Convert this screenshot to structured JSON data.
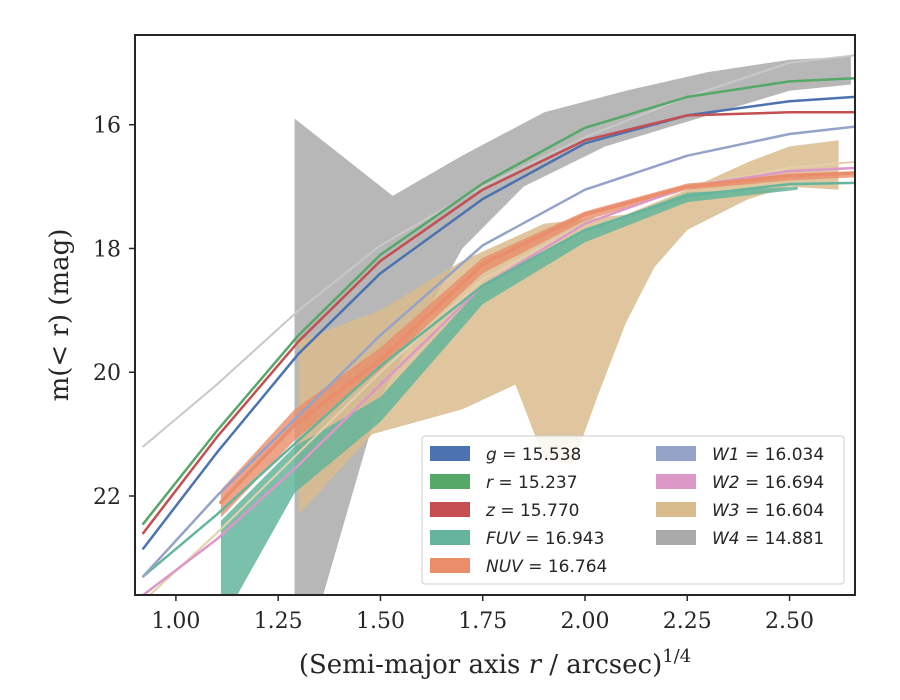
{
  "chart_data": {
    "type": "line",
    "title": "",
    "xlabel_main": "(Semi-major axis ",
    "xlabel_var": "r",
    "xlabel_tail": " / arcsec)",
    "xlabel_sup": "1/4",
    "ylabel": "m(< r) (mag)",
    "xlim": [
      0.9,
      2.66
    ],
    "ylim": [
      23.6,
      14.55
    ],
    "xticks": [
      "1.00",
      "1.25",
      "1.50",
      "1.75",
      "2.00",
      "2.25",
      "2.50"
    ],
    "xtick_values": [
      1.0,
      1.25,
      1.5,
      1.75,
      2.0,
      2.25,
      2.5
    ],
    "yticks": [
      "16",
      "18",
      "20",
      "22"
    ],
    "ytick_values": [
      16,
      18,
      20,
      22
    ],
    "grid": false,
    "legend_position": "lower-right",
    "legend": [
      {
        "label": "g = 15.538",
        "var": "g",
        "value": "15.538",
        "color": "#4c72b0"
      },
      {
        "label": "r = 15.237",
        "var": "r",
        "value": "15.237",
        "color": "#55a868"
      },
      {
        "label": "z = 15.770",
        "var": "z",
        "value": "15.770",
        "color": "#c44e52"
      },
      {
        "label": "FUV = 16.943",
        "var": "FUV",
        "value": "16.943",
        "color": "#64b59b"
      },
      {
        "label": "NUV = 16.764",
        "var": "NUV",
        "value": "16.764",
        "color": "#e98d6b"
      },
      {
        "label": "W1 = 16.034",
        "var": "W1",
        "value": "16.034",
        "color": "#95a3c8"
      },
      {
        "label": "W2 = 16.694",
        "var": "W2",
        "value": "16.694",
        "color": "#dc98c6"
      },
      {
        "label": "W3 = 16.604",
        "var": "W3",
        "value": "16.604",
        "color": "#d9bc8e"
      },
      {
        "label": "W4 = 14.881",
        "var": "W4",
        "value": "14.881",
        "color": "#aaaaaa"
      }
    ],
    "bands": [
      {
        "name": "W4",
        "color": "#aaaaaa",
        "opacity": 0.85,
        "upper": [
          [
            1.29,
            15.9
          ],
          [
            1.53,
            17.15
          ],
          [
            1.7,
            16.5
          ],
          [
            1.9,
            15.8
          ],
          [
            2.1,
            15.45
          ],
          [
            2.3,
            15.15
          ],
          [
            2.5,
            14.95
          ],
          [
            2.65,
            14.9
          ]
        ],
        "lower": [
          [
            1.29,
            23.6
          ],
          [
            1.36,
            23.6
          ],
          [
            1.5,
            20.4
          ],
          [
            1.7,
            18.0
          ],
          [
            1.85,
            17.0
          ],
          [
            2.05,
            16.35
          ],
          [
            2.3,
            15.85
          ],
          [
            2.5,
            15.45
          ],
          [
            2.65,
            15.35
          ]
        ]
      },
      {
        "name": "W3",
        "color": "#d9bc8e",
        "opacity": 0.85,
        "upper": [
          [
            1.3,
            19.5
          ],
          [
            1.5,
            19.0
          ],
          [
            1.7,
            18.2
          ],
          [
            1.9,
            17.6
          ],
          [
            2.1,
            17.45
          ],
          [
            2.25,
            17.05
          ],
          [
            2.4,
            16.6
          ],
          [
            2.5,
            16.35
          ],
          [
            2.62,
            16.25
          ]
        ],
        "lower": [
          [
            1.3,
            22.3
          ],
          [
            1.48,
            21.0
          ],
          [
            1.7,
            20.6
          ],
          [
            1.83,
            20.2
          ],
          [
            1.9,
            21.4
          ],
          [
            1.97,
            21.5
          ],
          [
            2.03,
            20.4
          ],
          [
            2.1,
            19.2
          ],
          [
            2.17,
            18.3
          ],
          [
            2.25,
            17.7
          ],
          [
            2.4,
            17.2
          ],
          [
            2.5,
            17.0
          ],
          [
            2.62,
            17.05
          ]
        ]
      },
      {
        "name": "FUV",
        "color": "#64b59b",
        "opacity": 0.85,
        "upper": [
          [
            1.11,
            22.4
          ],
          [
            1.29,
            21.2
          ],
          [
            1.5,
            20.4
          ],
          [
            1.75,
            18.6
          ],
          [
            2.0,
            17.7
          ],
          [
            2.25,
            17.1
          ],
          [
            2.52,
            17.0
          ]
        ],
        "lower": [
          [
            1.11,
            23.6
          ],
          [
            1.15,
            23.6
          ],
          [
            1.29,
            21.95
          ],
          [
            1.5,
            20.8
          ],
          [
            1.75,
            18.9
          ],
          [
            2.0,
            17.9
          ],
          [
            2.25,
            17.25
          ],
          [
            2.52,
            17.05
          ]
        ]
      },
      {
        "name": "NUV",
        "color": "#e98d6b",
        "opacity": 0.8,
        "upper": [
          [
            1.11,
            21.9
          ],
          [
            1.29,
            20.6
          ],
          [
            1.5,
            19.6
          ],
          [
            1.75,
            18.15
          ],
          [
            2.0,
            17.4
          ],
          [
            2.25,
            16.95
          ],
          [
            2.5,
            16.8
          ],
          [
            2.66,
            16.75
          ]
        ],
        "lower": [
          [
            1.11,
            22.35
          ],
          [
            1.29,
            21.1
          ],
          [
            1.5,
            19.95
          ],
          [
            1.75,
            18.4
          ],
          [
            2.0,
            17.55
          ],
          [
            2.25,
            17.05
          ],
          [
            2.5,
            16.9
          ],
          [
            2.66,
            16.85
          ]
        ]
      }
    ],
    "series": [
      {
        "name": "W4",
        "color": "#c8c8c8",
        "width": 2,
        "values": [
          [
            0.92,
            21.2
          ],
          [
            1.1,
            20.2
          ],
          [
            1.3,
            19.0
          ],
          [
            1.5,
            17.95
          ],
          [
            1.75,
            17.0
          ],
          [
            2.0,
            16.2
          ],
          [
            2.25,
            15.55
          ],
          [
            2.5,
            15.0
          ],
          [
            2.66,
            14.88
          ]
        ]
      },
      {
        "name": "W3",
        "color": "#e4cfae",
        "width": 2,
        "values": [
          [
            0.92,
            23.7
          ],
          [
            1.1,
            22.6
          ],
          [
            1.3,
            21.3
          ],
          [
            1.5,
            20.0
          ],
          [
            1.75,
            18.5
          ],
          [
            2.0,
            17.6
          ],
          [
            2.25,
            17.0
          ],
          [
            2.5,
            16.7
          ],
          [
            2.66,
            16.6
          ]
        ]
      },
      {
        "name": "W2",
        "color": "#dc98c6",
        "width": 2.5,
        "values": [
          [
            0.92,
            23.6
          ],
          [
            1.1,
            22.7
          ],
          [
            1.3,
            21.5
          ],
          [
            1.5,
            20.2
          ],
          [
            1.75,
            18.6
          ],
          [
            2.0,
            17.6
          ],
          [
            2.25,
            17.0
          ],
          [
            2.5,
            16.75
          ],
          [
            2.66,
            16.7
          ]
        ]
      },
      {
        "name": "FUV",
        "color": "#64b59b",
        "width": 2.5,
        "values": [
          [
            0.92,
            23.3
          ],
          [
            1.1,
            22.3
          ],
          [
            1.3,
            21.1
          ],
          [
            1.5,
            19.9
          ],
          [
            1.75,
            18.6
          ],
          [
            2.0,
            17.7
          ],
          [
            2.25,
            17.15
          ],
          [
            2.5,
            16.96
          ],
          [
            2.66,
            16.94
          ]
        ]
      },
      {
        "name": "NUV",
        "color": "#e98d6b",
        "width": 3.5,
        "values": [
          [
            1.11,
            22.1
          ],
          [
            1.29,
            20.85
          ],
          [
            1.5,
            19.8
          ],
          [
            1.75,
            18.25
          ],
          [
            2.0,
            17.45
          ],
          [
            2.25,
            17.0
          ],
          [
            2.5,
            16.82
          ],
          [
            2.66,
            16.78
          ]
        ]
      },
      {
        "name": "W1",
        "color": "#95a3c8",
        "width": 2.5,
        "values": [
          [
            0.92,
            23.3
          ],
          [
            1.1,
            22.0
          ],
          [
            1.3,
            20.7
          ],
          [
            1.5,
            19.4
          ],
          [
            1.75,
            17.95
          ],
          [
            2.0,
            17.05
          ],
          [
            2.25,
            16.5
          ],
          [
            2.5,
            16.15
          ],
          [
            2.66,
            16.03
          ]
        ]
      },
      {
        "name": "g",
        "color": "#4c72b0",
        "width": 2.5,
        "values": [
          [
            0.92,
            22.85
          ],
          [
            1.1,
            21.3
          ],
          [
            1.3,
            19.7
          ],
          [
            1.5,
            18.4
          ],
          [
            1.75,
            17.2
          ],
          [
            2.0,
            16.3
          ],
          [
            2.25,
            15.85
          ],
          [
            2.5,
            15.62
          ],
          [
            2.66,
            15.55
          ]
        ]
      },
      {
        "name": "z",
        "color": "#c44e52",
        "width": 2.5,
        "values": [
          [
            0.92,
            22.6
          ],
          [
            1.1,
            21.05
          ],
          [
            1.3,
            19.5
          ],
          [
            1.5,
            18.2
          ],
          [
            1.75,
            17.05
          ],
          [
            2.0,
            16.25
          ],
          [
            2.25,
            15.85
          ],
          [
            2.5,
            15.8
          ],
          [
            2.66,
            15.8
          ]
        ]
      },
      {
        "name": "r",
        "color": "#55a868",
        "width": 2.5,
        "values": [
          [
            0.92,
            22.45
          ],
          [
            1.1,
            20.95
          ],
          [
            1.3,
            19.4
          ],
          [
            1.5,
            18.1
          ],
          [
            1.75,
            16.95
          ],
          [
            2.0,
            16.05
          ],
          [
            2.25,
            15.55
          ],
          [
            2.5,
            15.3
          ],
          [
            2.66,
            15.25
          ]
        ]
      }
    ]
  }
}
